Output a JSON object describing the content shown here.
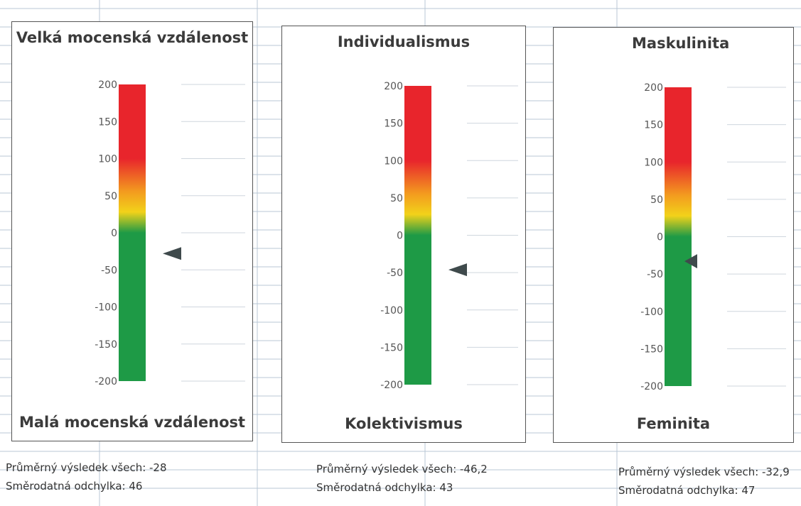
{
  "chart_data": [
    {
      "type": "gauge",
      "title": "Velká mocenská vzdálenost",
      "bottom_label": "Malá mocenská vzdálenost",
      "ylim": [
        -200,
        200
      ],
      "ticks": [
        200,
        150,
        100,
        50,
        0,
        -50,
        -100,
        -150,
        -200
      ],
      "value": -28,
      "mean_label": "Průměrný výsledek všech: -28",
      "std_label": "Směrodatná odchylka: 46"
    },
    {
      "type": "gauge",
      "title": "Individualismus",
      "bottom_label": "Kolektivismus",
      "ylim": [
        -200,
        200
      ],
      "ticks": [
        200,
        150,
        100,
        50,
        0,
        -50,
        -100,
        -150,
        -200
      ],
      "value": -46.2,
      "mean_label": "Průměrný výsledek všech: -46,2",
      "std_label": "Směrodatná odchylka: 43"
    },
    {
      "type": "gauge",
      "title": "Maskulinita",
      "bottom_label": "Feminita",
      "ylim": [
        -200,
        200
      ],
      "ticks": [
        200,
        150,
        100,
        50,
        0,
        -50,
        -100,
        -150,
        -200
      ],
      "value": -32.9,
      "mean_label": "Průměrný výsledek všech: -32,9",
      "std_label": "Směrodatná odchylka: 47"
    }
  ],
  "colors": {
    "red": "#e8252c",
    "orange": "#f39a1f",
    "yellow": "#f2d21a",
    "green": "#1e9a46",
    "marker": "#3f4a4c",
    "gridline": "#b9c7d6"
  }
}
